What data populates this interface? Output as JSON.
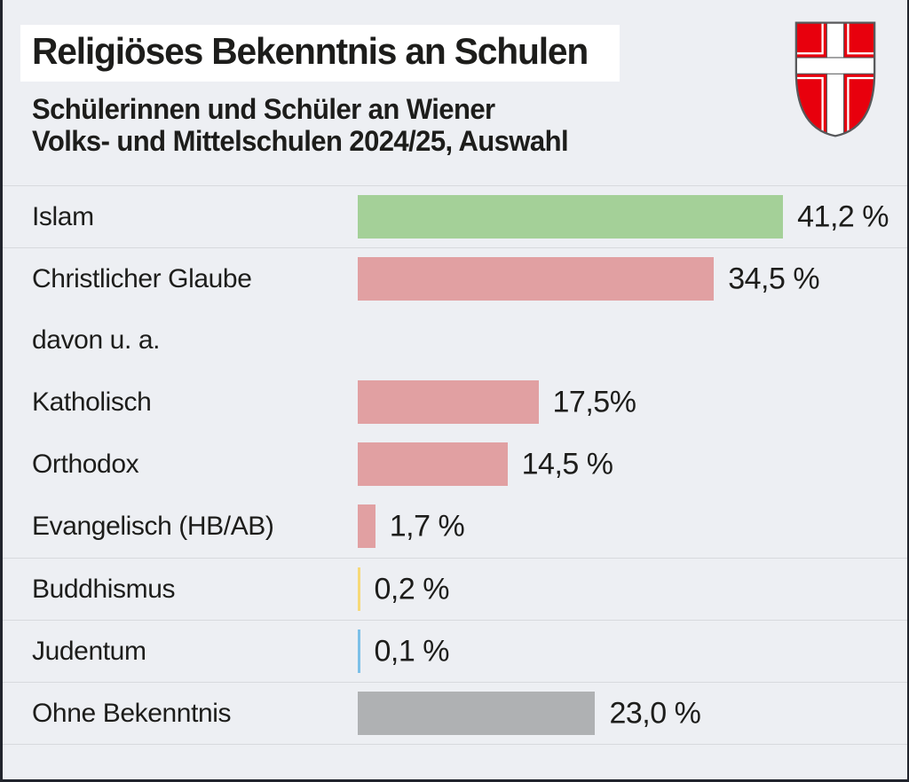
{
  "header": {
    "title": "Religiöses Bekenntnis an Schulen",
    "subtitle_line1": "Schülerinnen und Schüler an Wiener",
    "subtitle_line2": "Volks- und Mittelschulen 2024/25, Auswahl",
    "emblem": "vienna-coat-of-arms"
  },
  "colors": {
    "background": "#edeff3",
    "title_background": "#ffffff",
    "text": "#1d1d1b",
    "separator": "#d7d9dd",
    "edge": "#21242c",
    "bar_green": "#a4d098",
    "bar_pink": "#e1a0a2",
    "bar_yellow": "#f6d978",
    "bar_blue": "#7cc0e8",
    "bar_gray": "#afb1b3",
    "shield_red": "#e8000d",
    "shield_white": "#ffffff",
    "shield_outline": "#58595b"
  },
  "chart_data": {
    "type": "bar",
    "orientation": "horizontal",
    "title": "Religiöses Bekenntnis an Schulen",
    "subtitle": "Schülerinnen und Schüler an Wiener Volks- und Mittelschulen 2024/25, Auswahl",
    "unit": "%",
    "xlim": [
      0,
      50
    ],
    "grid": false,
    "legend": false,
    "categories": [
      "Islam",
      "Christlicher Glaube",
      "davon u. a.",
      "Katholisch",
      "Orthodox",
      "Evangelisch (HB/AB)",
      "Buddhismus",
      "Judentum",
      "Ohne Bekenntnis"
    ],
    "values": [
      41.2,
      34.5,
      null,
      17.5,
      14.5,
      1.7,
      0.2,
      0.1,
      23.0
    ],
    "rows": [
      {
        "label": "Islam",
        "value": 41.2,
        "value_label": "41,2 %",
        "bar_color": "#a4d098",
        "sep_above": true
      },
      {
        "label": "Christlicher Glaube",
        "value": 34.5,
        "value_label": "34,5 %",
        "bar_color": "#e1a0a2",
        "sep_above": true
      },
      {
        "label": "davon u. a.",
        "value": null,
        "value_label": "",
        "bar_color": null,
        "sep_above": false
      },
      {
        "label": "Katholisch",
        "value": 17.5,
        "value_label": "17,5%",
        "bar_color": "#e1a0a2",
        "sep_above": false
      },
      {
        "label": "Orthodox",
        "value": 14.5,
        "value_label": "14,5 %",
        "bar_color": "#e1a0a2",
        "sep_above": false
      },
      {
        "label": "Evangelisch (HB/AB)",
        "value": 1.7,
        "value_label": "1,7 %",
        "bar_color": "#e1a0a2",
        "sep_above": false
      },
      {
        "label": "Buddhismus",
        "value": 0.2,
        "value_label": "0,2 %",
        "bar_color": "#f6d978",
        "sep_above": true
      },
      {
        "label": "Judentum",
        "value": 0.1,
        "value_label": "0,1 %",
        "bar_color": "#7cc0e8",
        "sep_above": true
      },
      {
        "label": "Ohne Bekenntnis",
        "value": 23.0,
        "value_label": "23,0 %",
        "bar_color": "#afb1b3",
        "sep_above": true
      }
    ]
  }
}
